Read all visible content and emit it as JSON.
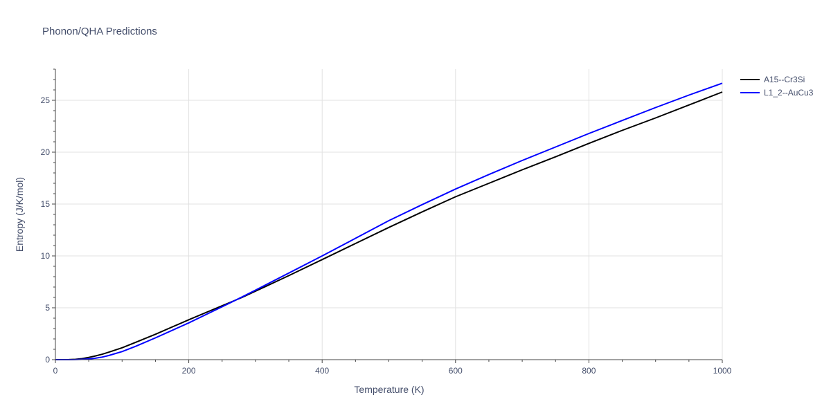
{
  "chart_data": {
    "type": "line",
    "title": "Phonon/QHA Predictions",
    "xlabel": "Temperature (K)",
    "ylabel": "Entropy (J/K/mol)",
    "xlim": [
      0,
      1000
    ],
    "ylim": [
      0,
      28
    ],
    "xticks": [
      0,
      200,
      400,
      600,
      800,
      1000
    ],
    "yticks": [
      0,
      5,
      10,
      15,
      20,
      25
    ],
    "grid": true,
    "legend": "top-right",
    "series": [
      {
        "name": "A15--Cr3Si",
        "color": "#000000",
        "points": [
          [
            0,
            0
          ],
          [
            20,
            0.01
          ],
          [
            30,
            0.03
          ],
          [
            40,
            0.1
          ],
          [
            50,
            0.22
          ],
          [
            60,
            0.36
          ],
          [
            70,
            0.52
          ],
          [
            80,
            0.72
          ],
          [
            100,
            1.15
          ],
          [
            120,
            1.66
          ],
          [
            150,
            2.45
          ],
          [
            200,
            3.85
          ],
          [
            250,
            5.2
          ],
          [
            280,
            6.0
          ],
          [
            300,
            6.6
          ],
          [
            350,
            8.1
          ],
          [
            400,
            9.65
          ],
          [
            450,
            11.2
          ],
          [
            500,
            12.75
          ],
          [
            550,
            14.25
          ],
          [
            600,
            15.7
          ],
          [
            650,
            17.0
          ],
          [
            700,
            18.3
          ],
          [
            750,
            19.55
          ],
          [
            800,
            20.85
          ],
          [
            850,
            22.1
          ],
          [
            900,
            23.3
          ],
          [
            950,
            24.55
          ],
          [
            1000,
            25.8
          ]
        ]
      },
      {
        "name": "L1_2--AuCu3",
        "color": "#0000ff",
        "points": [
          [
            0,
            0
          ],
          [
            20,
            0.0
          ],
          [
            30,
            0.01
          ],
          [
            40,
            0.03
          ],
          [
            50,
            0.07
          ],
          [
            60,
            0.14
          ],
          [
            70,
            0.25
          ],
          [
            80,
            0.4
          ],
          [
            100,
            0.78
          ],
          [
            120,
            1.28
          ],
          [
            150,
            2.1
          ],
          [
            200,
            3.55
          ],
          [
            250,
            5.1
          ],
          [
            280,
            6.05
          ],
          [
            300,
            6.7
          ],
          [
            350,
            8.35
          ],
          [
            400,
            10.0
          ],
          [
            450,
            11.7
          ],
          [
            500,
            13.4
          ],
          [
            550,
            14.95
          ],
          [
            600,
            16.45
          ],
          [
            650,
            17.85
          ],
          [
            700,
            19.2
          ],
          [
            750,
            20.5
          ],
          [
            800,
            21.8
          ],
          [
            850,
            23.05
          ],
          [
            900,
            24.3
          ],
          [
            950,
            25.5
          ],
          [
            1000,
            26.65
          ]
        ]
      }
    ]
  }
}
